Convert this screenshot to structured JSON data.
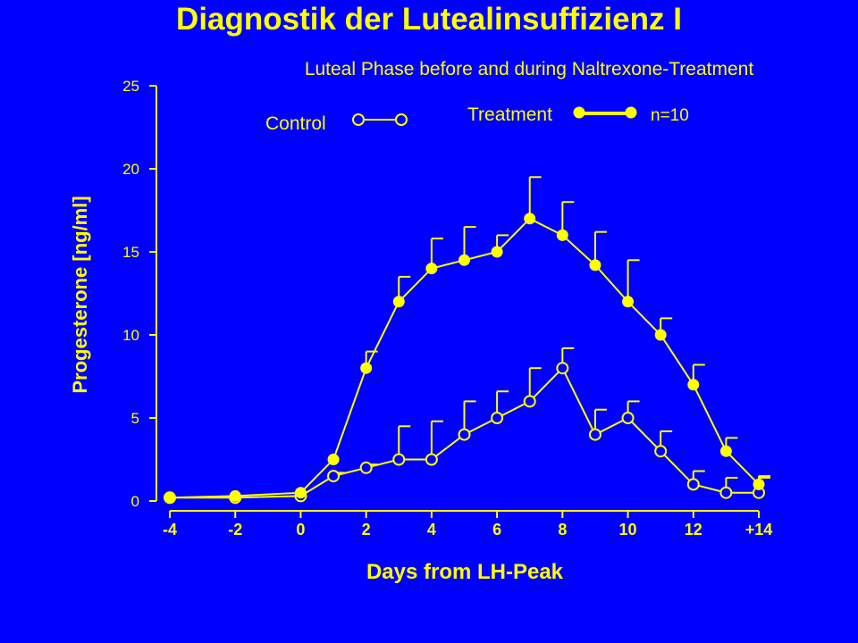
{
  "slide": {
    "title": "Diagnostik der Lutealinsuffizienz I"
  },
  "colors": {
    "background": "#0000ff",
    "foreground": "#ffff00",
    "control_marker_fill": "#0000ff",
    "treatment_marker_fill": "#ffff00"
  },
  "chart_data": {
    "type": "line",
    "subtitle": "Luteal Phase before and during Naltrexone-Treatment",
    "xlabel": "Days from LH-Peak",
    "ylabel": "Progesterone [ng/ml]",
    "xlim": [
      -4,
      14
    ],
    "ylim": [
      0,
      25
    ],
    "x_ticks": [
      -4,
      -2,
      0,
      2,
      4,
      6,
      8,
      10,
      12,
      14
    ],
    "x_tick_labels": [
      "-4",
      "-2",
      "0",
      "2",
      "4",
      "6",
      "8",
      "10",
      "12",
      "+14"
    ],
    "y_ticks": [
      0,
      5,
      10,
      15,
      20,
      25
    ],
    "y_tick_labels": [
      "0",
      "5",
      "10",
      "15",
      "20",
      "25"
    ],
    "grid": false,
    "legend_placement": "top",
    "n_label": "n=10",
    "series": [
      {
        "name": "Control",
        "marker": "open-circle",
        "points": [
          {
            "x": -4,
            "y": 0.2
          },
          {
            "x": -2,
            "y": 0.2
          },
          {
            "x": 0,
            "y": 0.3
          },
          {
            "x": 1,
            "y": 1.5,
            "err": 0.2
          },
          {
            "x": 2,
            "y": 2.0,
            "err": 0.2
          },
          {
            "x": 3,
            "y": 2.5,
            "err": 2.0
          },
          {
            "x": 4,
            "y": 2.5,
            "err": 2.3
          },
          {
            "x": 5,
            "y": 4.0,
            "err": 2.0
          },
          {
            "x": 6,
            "y": 5.0,
            "err": 1.6
          },
          {
            "x": 7,
            "y": 6.0,
            "err": 2.0
          },
          {
            "x": 8,
            "y": 8.0,
            "err": 1.2
          },
          {
            "x": 9,
            "y": 4.0,
            "err": 1.5
          },
          {
            "x": 10,
            "y": 5.0,
            "err": 1.0
          },
          {
            "x": 11,
            "y": 3.0,
            "err": 1.2
          },
          {
            "x": 12,
            "y": 1.0,
            "err": 0.8
          },
          {
            "x": 13,
            "y": 0.5,
            "err": 0.9
          },
          {
            "x": 14,
            "y": 0.5,
            "err": 0.9
          }
        ]
      },
      {
        "name": "Treatment",
        "marker": "filled-circle",
        "points": [
          {
            "x": -4,
            "y": 0.2
          },
          {
            "x": -2,
            "y": 0.3
          },
          {
            "x": 0,
            "y": 0.5
          },
          {
            "x": 1,
            "y": 2.5
          },
          {
            "x": 2,
            "y": 8.0,
            "err": 1.0
          },
          {
            "x": 3,
            "y": 12.0,
            "err": 1.5
          },
          {
            "x": 4,
            "y": 14.0,
            "err": 1.8
          },
          {
            "x": 5,
            "y": 14.5,
            "err": 2.0
          },
          {
            "x": 6,
            "y": 15.0,
            "err": 1.0
          },
          {
            "x": 7,
            "y": 17.0,
            "err": 2.5
          },
          {
            "x": 8,
            "y": 16.0,
            "err": 2.0
          },
          {
            "x": 9,
            "y": 14.2,
            "err": 2.0
          },
          {
            "x": 10,
            "y": 12.0,
            "err": 2.5
          },
          {
            "x": 11,
            "y": 10.0,
            "err": 1.0
          },
          {
            "x": 12,
            "y": 7.0,
            "err": 1.2
          },
          {
            "x": 13,
            "y": 3.0,
            "err": 0.8
          },
          {
            "x": 14,
            "y": 1.0,
            "err": 0.5
          }
        ]
      }
    ]
  }
}
